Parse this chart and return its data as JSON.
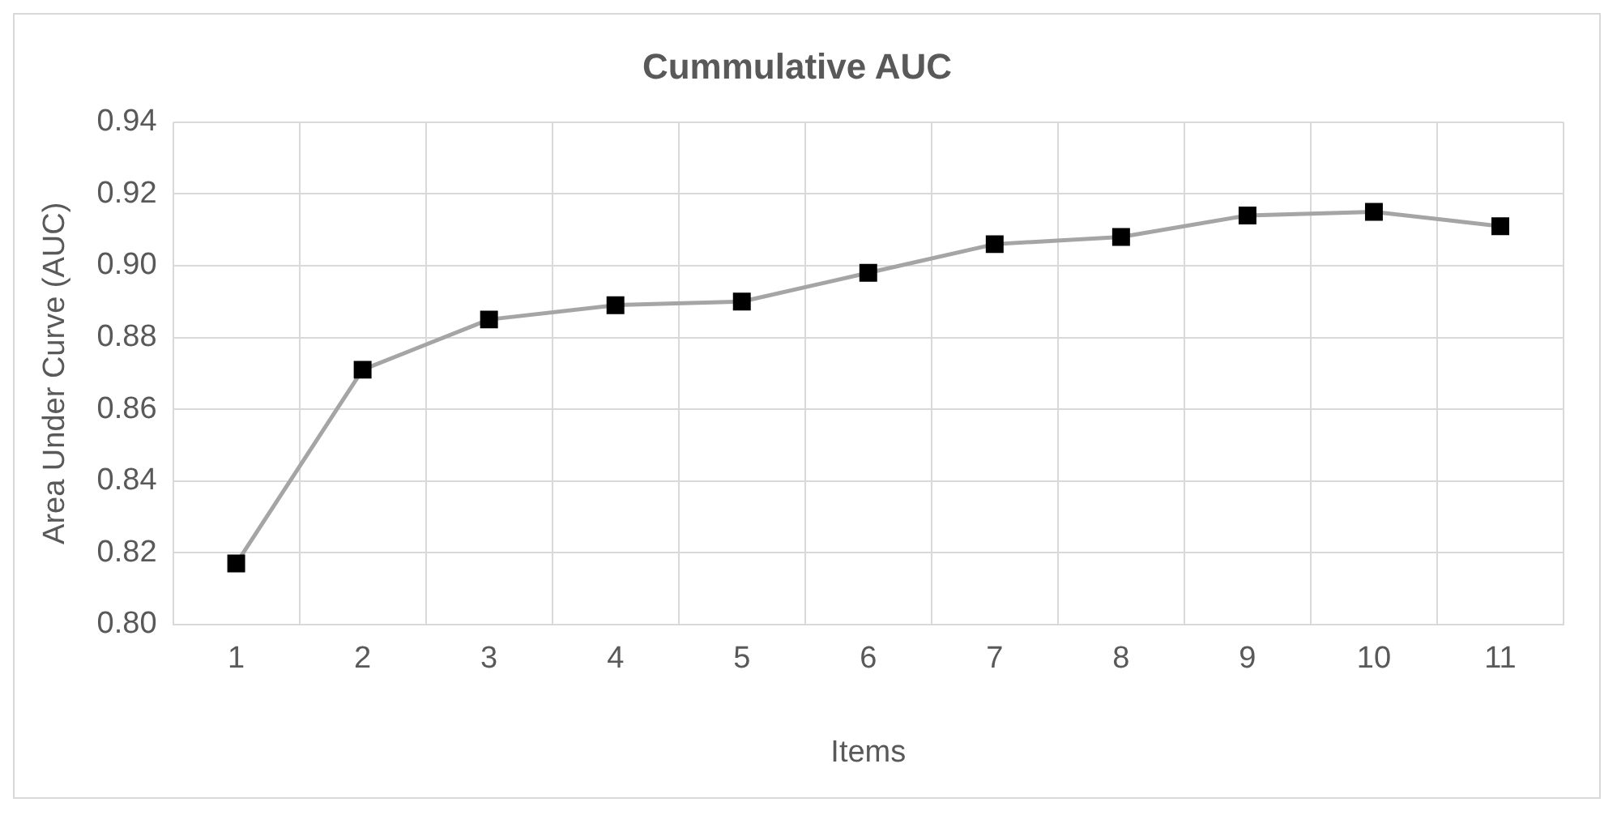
{
  "chart_data": {
    "type": "line",
    "title": "Cummulative AUC",
    "xlabel": "Items",
    "ylabel": "Area Under Curve (AUC)",
    "categories": [
      "1",
      "2",
      "3",
      "4",
      "5",
      "6",
      "7",
      "8",
      "9",
      "10",
      "11"
    ],
    "series": [
      {
        "color": "#a5a5a5",
        "values": [
          0.817,
          0.871,
          0.885,
          0.889,
          0.89,
          0.898,
          0.906,
          0.908,
          0.914,
          0.915,
          0.911
        ]
      }
    ],
    "ylim": [
      0.8,
      0.94
    ],
    "yticks": [
      {
        "value": 0.8,
        "label": "0.80"
      },
      {
        "value": 0.82,
        "label": "0.82"
      },
      {
        "value": 0.84,
        "label": "0.84"
      },
      {
        "value": 0.86,
        "label": "0.86"
      },
      {
        "value": 0.88,
        "label": "0.88"
      },
      {
        "value": 0.9,
        "label": "0.90"
      },
      {
        "value": 0.92,
        "label": "0.92"
      },
      {
        "value": 0.94,
        "label": "0.94"
      }
    ],
    "grid": true,
    "legend": false,
    "marker": "square",
    "line_style": "solid"
  }
}
